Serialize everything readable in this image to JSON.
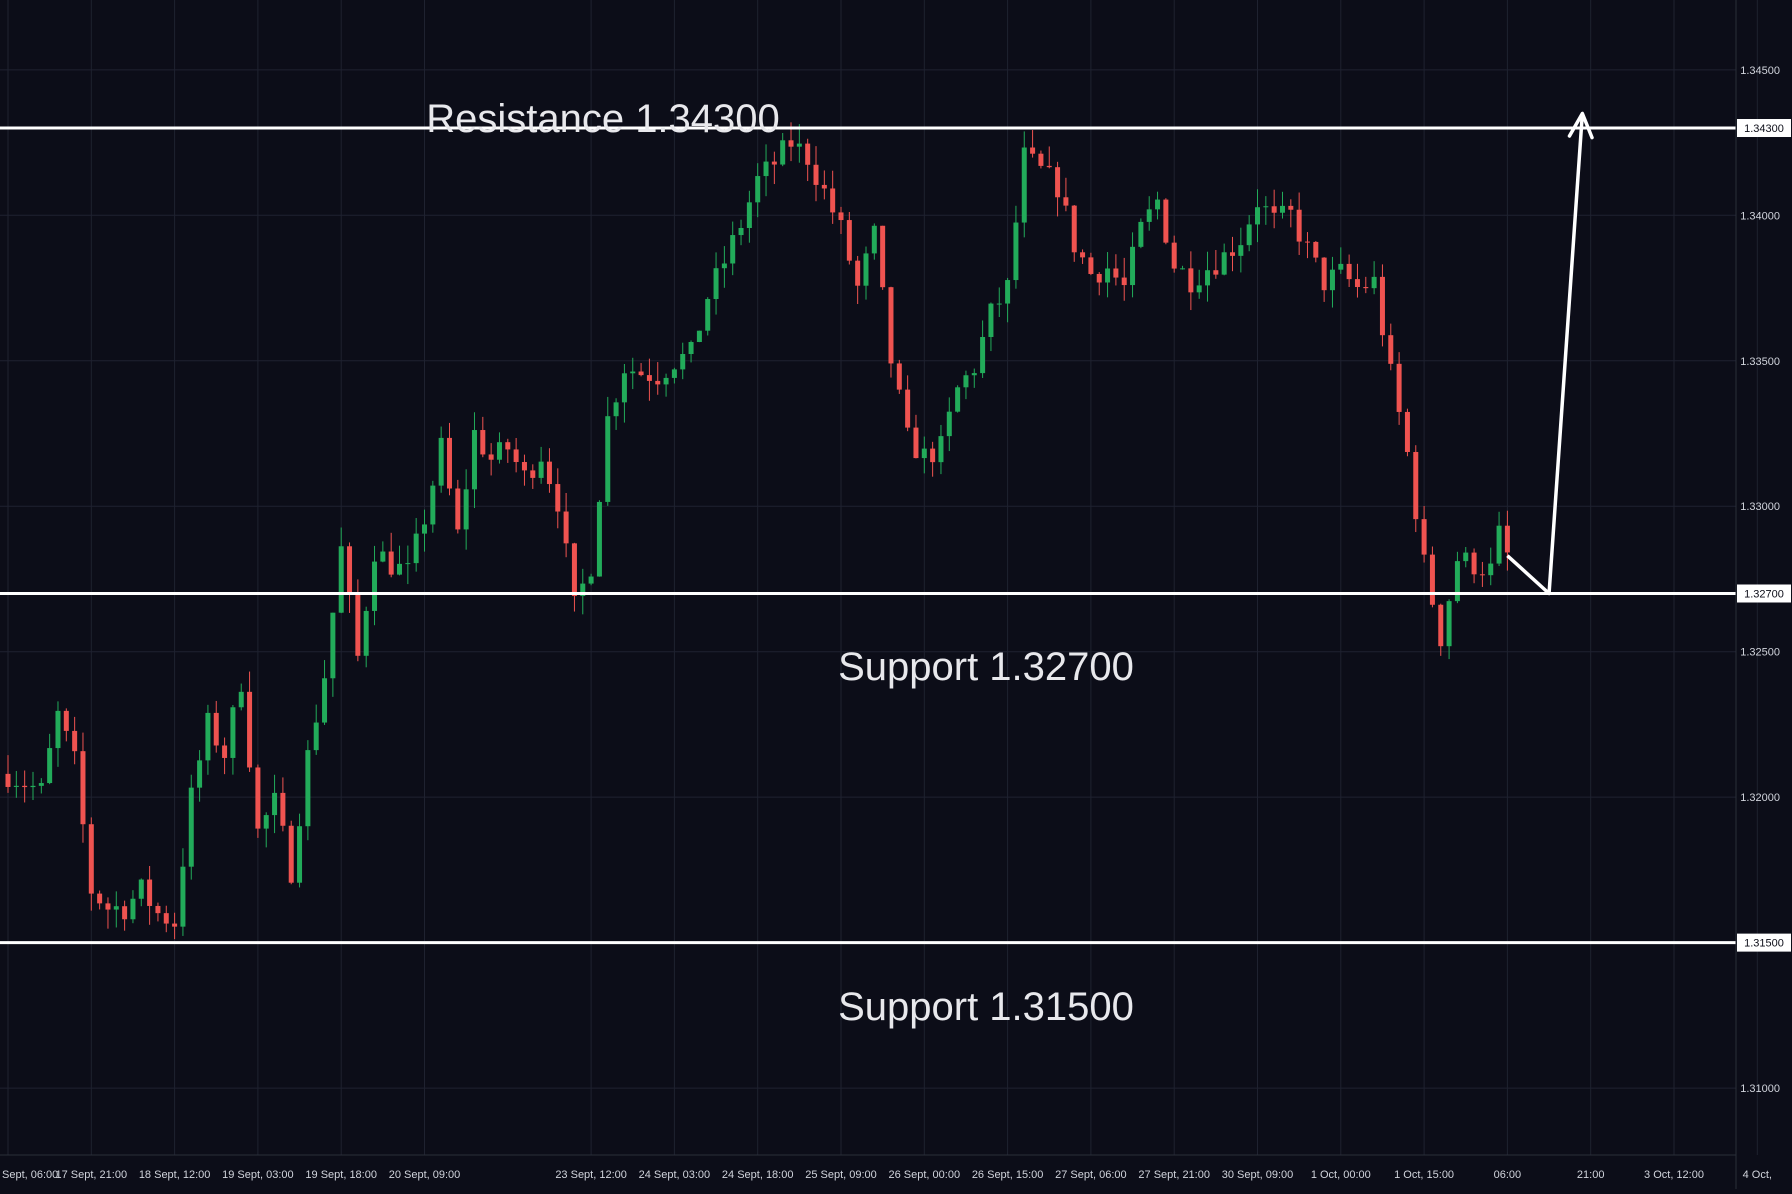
{
  "colors": {
    "background": "#0c0d18",
    "grid": "#1f2230",
    "up": "#22ab5a",
    "down": "#ef5350",
    "level_line": "#ffffff",
    "axis_text": "#d1d4dc",
    "price_tag_bg": "#ffffff",
    "price_tag_text": "#0c0d18"
  },
  "annotations": {
    "resistance_label": "Resistance 1.34300",
    "support_mid_label": "Support 1.32700",
    "support_low_label": "Support 1.31500"
  },
  "levels": [
    {
      "name": "resistance",
      "value": 1.343,
      "tag": "1.34300"
    },
    {
      "name": "support-mid",
      "value": 1.327,
      "tag": "1.32700"
    },
    {
      "name": "support-low",
      "value": 1.315,
      "tag": "1.31500"
    }
  ],
  "chart_data": {
    "type": "candlestick",
    "title": "",
    "ylim": [
      1.3077,
      1.3474
    ],
    "y_ticks": [
      "1.34500",
      "1.34000",
      "1.33500",
      "1.33000",
      "1.32500",
      "1.32000",
      "1.31000"
    ],
    "y_tick_values": [
      1.345,
      1.34,
      1.335,
      1.33,
      1.325,
      1.32,
      1.31
    ],
    "x_tick_labels": [
      "Sept, 06:00",
      "17 Sept, 21:00",
      "18 Sept, 12:00",
      "19 Sept, 03:00",
      "19 Sept, 18:00",
      "20 Sept, 09:00",
      "23 Sept, 12:00",
      "24 Sept, 03:00",
      "24 Sept, 18:00",
      "25 Sept, 09:00",
      "26 Sept, 00:00",
      "26 Sept, 15:00",
      "27 Sept, 06:00",
      "27 Sept, 21:00",
      "30 Sept, 09:00",
      "1 Oct, 00:00",
      "1 Oct, 15:00",
      "06:00",
      "21:00",
      "3 Oct, 12:00",
      "4 Oct,"
    ],
    "x_tick_index": [
      0,
      10,
      20,
      30,
      40,
      50,
      70,
      80,
      90,
      100,
      110,
      120,
      130,
      140,
      150,
      160,
      170,
      180,
      190,
      200,
      210
    ],
    "bar_count": 211,
    "close_path": [
      [
        0,
        1.3208
      ],
      [
        4,
        1.3202
      ],
      [
        6,
        1.3228
      ],
      [
        8,
        1.3212
      ],
      [
        10,
        1.3168
      ],
      [
        12,
        1.3162
      ],
      [
        14,
        1.3162
      ],
      [
        16,
        1.3168
      ],
      [
        18,
        1.316
      ],
      [
        20,
        1.3157
      ],
      [
        22,
        1.32
      ],
      [
        24,
        1.3225
      ],
      [
        26,
        1.3215
      ],
      [
        28,
        1.324
      ],
      [
        30,
        1.3188
      ],
      [
        32,
        1.3198
      ],
      [
        34,
        1.3175
      ],
      [
        36,
        1.3214
      ],
      [
        38,
        1.3242
      ],
      [
        40,
        1.3285
      ],
      [
        42,
        1.3248
      ],
      [
        44,
        1.3285
      ],
      [
        46,
        1.328
      ],
      [
        48,
        1.3277
      ],
      [
        50,
        1.3296
      ],
      [
        52,
        1.332
      ],
      [
        54,
        1.329
      ],
      [
        56,
        1.3325
      ],
      [
        58,
        1.3316
      ],
      [
        60,
        1.332
      ],
      [
        62,
        1.331
      ],
      [
        64,
        1.3318
      ],
      [
        66,
        1.3302
      ],
      [
        68,
        1.3265
      ],
      [
        70,
        1.328
      ],
      [
        72,
        1.333
      ],
      [
        74,
        1.3348
      ],
      [
        76,
        1.3346
      ],
      [
        78,
        1.3345
      ],
      [
        80,
        1.335
      ],
      [
        82,
        1.3352
      ],
      [
        84,
        1.3372
      ],
      [
        86,
        1.3384
      ],
      [
        88,
        1.3397
      ],
      [
        90,
        1.3412
      ],
      [
        92,
        1.3418
      ],
      [
        94,
        1.3425
      ],
      [
        96,
        1.342
      ],
      [
        98,
        1.3408
      ],
      [
        100,
        1.3395
      ],
      [
        102,
        1.3375
      ],
      [
        104,
        1.3393
      ],
      [
        106,
        1.335
      ],
      [
        108,
        1.3323
      ],
      [
        110,
        1.3317
      ],
      [
        112,
        1.332
      ],
      [
        114,
        1.334
      ],
      [
        116,
        1.3348
      ],
      [
        118,
        1.3366
      ],
      [
        120,
        1.3375
      ],
      [
        122,
        1.342
      ],
      [
        124,
        1.3415
      ],
      [
        126,
        1.341
      ],
      [
        128,
        1.339
      ],
      [
        130,
        1.338
      ],
      [
        132,
        1.3382
      ],
      [
        134,
        1.3375
      ],
      [
        136,
        1.3395
      ],
      [
        138,
        1.3405
      ],
      [
        140,
        1.3383
      ],
      [
        142,
        1.3378
      ],
      [
        144,
        1.3382
      ],
      [
        146,
        1.3386
      ],
      [
        148,
        1.3392
      ],
      [
        150,
        1.3405
      ],
      [
        152,
        1.3398
      ],
      [
        154,
        1.34
      ],
      [
        156,
        1.3388
      ],
      [
        158,
        1.3377
      ],
      [
        160,
        1.338
      ],
      [
        162,
        1.3375
      ],
      [
        164,
        1.3377
      ],
      [
        166,
        1.3345
      ],
      [
        168,
        1.3318
      ],
      [
        170,
        1.328
      ],
      [
        172,
        1.3255
      ],
      [
        174,
        1.3282
      ],
      [
        176,
        1.328
      ],
      [
        178,
        1.3278
      ],
      [
        179,
        1.329
      ],
      [
        180,
        1.3283
      ]
    ],
    "projection": [
      [
        180,
        1.3283
      ],
      [
        185,
        1.327
      ],
      [
        189,
        1.3435
      ]
    ],
    "grid": true
  }
}
